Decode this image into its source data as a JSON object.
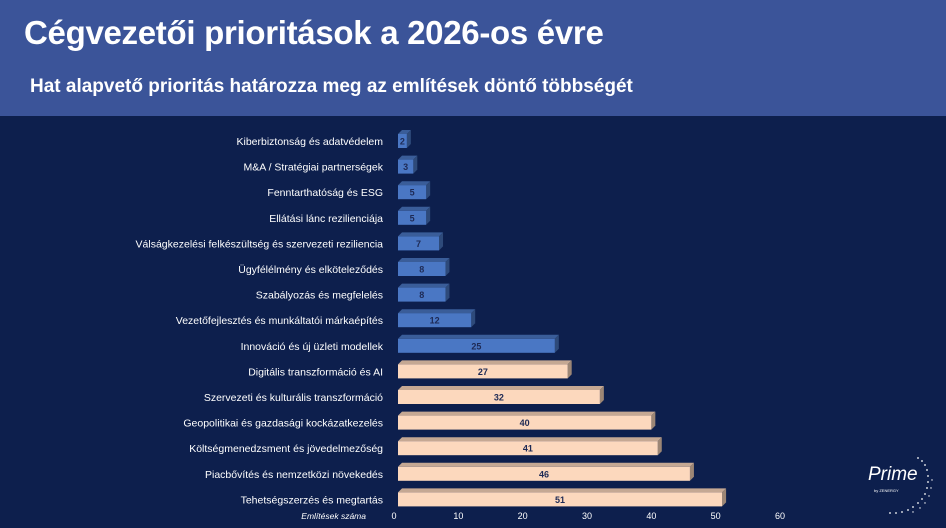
{
  "title": "Cégvezetői prioritások a 2026-os évre",
  "subtitle": "Hat alapvető prioritás határozza meg az említések döntő többségét",
  "logo": {
    "name": "Prime",
    "tagline": "by ZENERGY"
  },
  "colors": {
    "header_bg": "#3b5499",
    "background": "#0d1f4d",
    "blue_bar": "#4a77c4",
    "peach_bar": "#fcd8bd",
    "label_text": "#ffffff",
    "value_text": "#1e2a55"
  },
  "chart_data": {
    "type": "bar",
    "orientation": "horizontal",
    "title": "",
    "xlabel": "Említések száma",
    "ylabel": "",
    "xlim": [
      0,
      60
    ],
    "xticks": [
      0,
      10,
      20,
      30,
      40,
      50,
      60
    ],
    "grid": false,
    "categories": [
      "Kiberbiztonság és adatvédelem",
      "M&A / Stratégiai partnerségek",
      "Fenntarthatóság és ESG",
      "Ellátási lánc rezilienciája",
      "Válságkezelési felkészültség és szervezeti reziliencia",
      "Ügyfélélmény és elköteleződés",
      "Szabályozás és megfelelés",
      "Vezetőfejlesztés és munkáltatói márkaépítés",
      "Innováció és új üzleti modellek",
      "Digitális transzformáció és AI",
      "Szervezeti és kulturális transzformáció",
      "Geopolitikai és gazdasági kockázatkezelés",
      "Költségmenedzsment és jövedelmezőség",
      "Piacbővítés és nemzetközi növekedés",
      "Tehetségszerzés és megtartás"
    ],
    "values": [
      2,
      3,
      5,
      5,
      7,
      8,
      8,
      12,
      25,
      27,
      32,
      40,
      41,
      46,
      51
    ],
    "bar_colors": [
      "blue",
      "blue",
      "blue",
      "blue",
      "blue",
      "blue",
      "blue",
      "blue",
      "blue",
      "peach",
      "peach",
      "peach",
      "peach",
      "peach",
      "peach"
    ],
    "data_labels": [
      "2",
      "3",
      "5",
      "5",
      "7",
      "8",
      "8",
      "12",
      "25",
      "27",
      "32",
      "40",
      "41",
      "46",
      "51"
    ]
  }
}
